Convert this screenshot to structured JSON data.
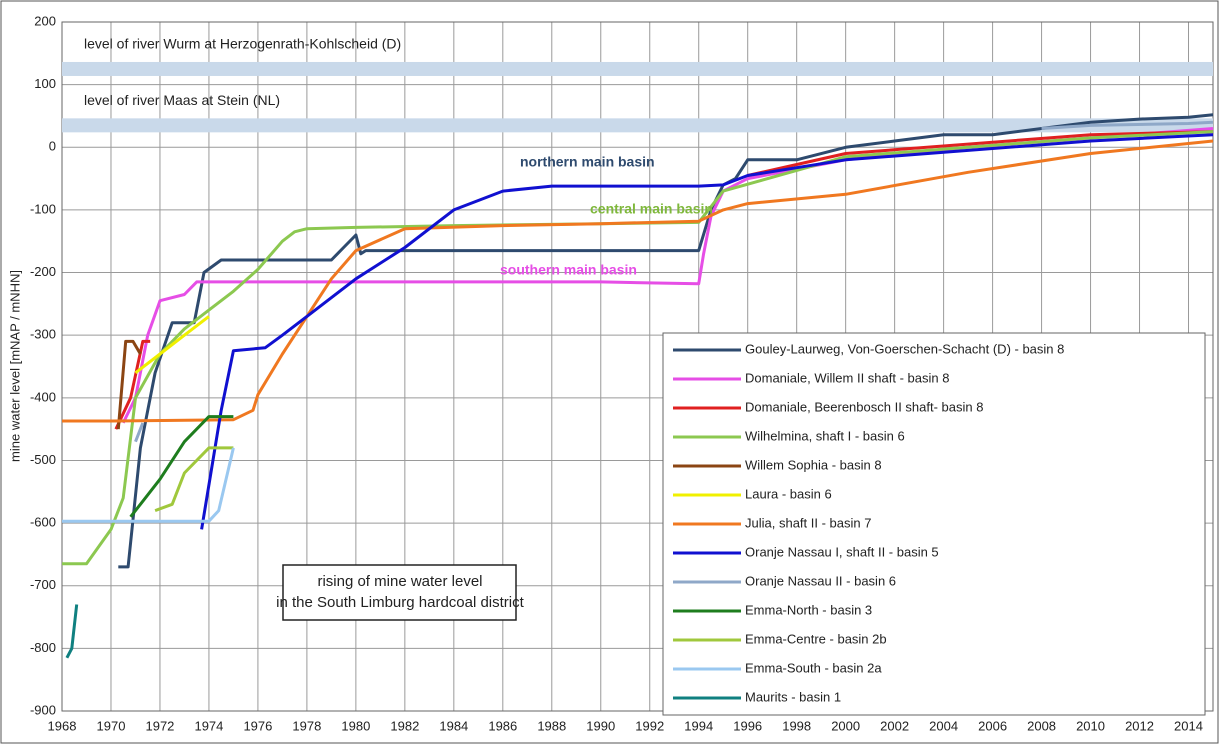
{
  "chart_data": {
    "type": "line",
    "y_label": "mine water level [mNAP / mNHN]",
    "xlim": [
      1968,
      2015
    ],
    "ylim": [
      -900,
      200
    ],
    "xticks": [
      1968,
      1970,
      1972,
      1974,
      1976,
      1978,
      1980,
      1982,
      1984,
      1986,
      1988,
      1990,
      1992,
      1994,
      1996,
      1998,
      2000,
      2002,
      2004,
      2006,
      2008,
      2010,
      2012,
      2014
    ],
    "yticks": [
      -900,
      -800,
      -700,
      -600,
      -500,
      -400,
      -300,
      -200,
      -100,
      0,
      100,
      200
    ],
    "grid": true,
    "legend": "lower right",
    "bands": [
      {
        "label": "level of river Wurm at Herzogenrath-Kohlscheid (D)",
        "value": 125,
        "color": "#c9d9ea"
      },
      {
        "label": "level of river Maas at Stein (NL)",
        "value": 35,
        "color": "#c9d9ea"
      }
    ],
    "annotations": [
      {
        "text": "northern main basin",
        "color": "#2e4a6e"
      },
      {
        "text": "central main basin",
        "color": "#7fb83c"
      },
      {
        "text": "southern main basin",
        "color": "#e64ee6"
      }
    ],
    "note": [
      "rising of mine water level",
      "in the South Limburg hardcoal district"
    ],
    "series": [
      {
        "name": "Gouley-Laurweg, Von-Goerschen-Schacht (D) - basin 8",
        "color": "#2e4a6e",
        "x": [
          1970.3,
          1970.7,
          1971.2,
          1971.8,
          1972.5,
          1973.4,
          1973.8,
          1974.5,
          1979,
          1979.5,
          1980,
          1980.2,
          1980.4,
          1994,
          1994.5,
          1995,
          1995.5,
          1996,
          1997,
          1998,
          2000,
          2002,
          2004,
          2006,
          2008,
          2010,
          2012,
          2014,
          2015
        ],
        "values": [
          -670,
          -670,
          -480,
          -360,
          -280,
          -280,
          -200,
          -180,
          -180,
          -160,
          -140,
          -170,
          -165,
          -165,
          -100,
          -60,
          -50,
          -20,
          -20,
          -20,
          0,
          10,
          20,
          20,
          30,
          40,
          45,
          48,
          52
        ]
      },
      {
        "name": "Domaniale, Willem II shaft - basin 8",
        "color": "#e64ee6",
        "x": [
          1970.5,
          1971,
          1971.5,
          1972,
          1973,
          1973.5,
          1980,
          1990,
          1994,
          1994.2,
          1994.5,
          1995,
          1996,
          2000,
          2005,
          2010,
          2015
        ],
        "values": [
          -440,
          -400,
          -300,
          -245,
          -235,
          -215,
          -215,
          -215,
          -218,
          -170,
          -110,
          -70,
          -50,
          -20,
          0,
          15,
          30
        ]
      },
      {
        "name": "Domaniale, Beerenbosch II shaft- basin 8",
        "color": "#e02020",
        "x": [
          1970.2,
          1970.8,
          1971.3,
          1971.6,
          1990,
          1996,
          2000,
          2005,
          2010,
          2015
        ],
        "values": [
          -450,
          -400,
          -310,
          -310,
          null,
          -45,
          -10,
          5,
          20,
          25
        ]
      },
      {
        "name": "Wilhelmina, shaft I - basin 6",
        "color": "#8cc850",
        "x": [
          1968,
          1969,
          1970,
          1970.5,
          1971,
          1972,
          1973,
          1974,
          1975,
          1976,
          1977,
          1977.5,
          1978,
          1980,
          1984,
          1990,
          1994,
          1995,
          2000,
          2005,
          2010,
          2015
        ],
        "values": [
          -665,
          -665,
          -610,
          -560,
          -400,
          -330,
          -290,
          -260,
          -230,
          -195,
          -150,
          -135,
          -130,
          -128,
          -125,
          -122,
          -120,
          -70,
          -15,
          0,
          15,
          25
        ]
      },
      {
        "name": "Willem Sophia - basin 8",
        "color": "#8b4513",
        "x": [
          1970.3,
          1970.6,
          1970.9,
          1971.2
        ],
        "values": [
          -450,
          -310,
          -310,
          -330
        ]
      },
      {
        "name": "Laura - basin 6",
        "color": "#f0f000",
        "x": [
          1971,
          1972,
          1973,
          1974
        ],
        "values": [
          -360,
          -330,
          -300,
          -270
        ]
      },
      {
        "name": "Julia, shaft II - basin 7",
        "color": "#f07820",
        "x": [
          1968,
          1970,
          1975,
          1975.8,
          1976,
          1977,
          1978,
          1979,
          1980,
          1982,
          1986,
          1990,
          1994,
          1995,
          1996,
          2000,
          2005,
          2010,
          2015
        ],
        "values": [
          -437,
          -437,
          -435,
          -420,
          -395,
          -330,
          -270,
          -210,
          -165,
          -130,
          -125,
          -122,
          -118,
          -100,
          -90,
          -75,
          -40,
          -10,
          10
        ]
      },
      {
        "name": "Oranje Nassau I, shaft II - basin 5",
        "color": "#1010d0",
        "x": [
          1973.7,
          1974.5,
          1975,
          1976.3,
          1977,
          1978,
          1980,
          1982,
          1984,
          1986,
          1988,
          1990,
          1994,
          1995,
          1996,
          2000,
          2005,
          2010,
          2015
        ],
        "values": [
          -610,
          -420,
          -325,
          -320,
          -300,
          -270,
          -210,
          -160,
          -100,
          -70,
          -62,
          -62,
          -62,
          -60,
          -45,
          -20,
          -5,
          10,
          20
        ]
      },
      {
        "name": "Oranje Nassau II - basin 6",
        "color": "#8fa8c8",
        "x": [
          1971,
          1971.3,
          1990,
          2008,
          2010,
          2014,
          2015
        ],
        "values": [
          -470,
          -440,
          null,
          30,
          35,
          38,
          40
        ]
      },
      {
        "name": "Emma-North - basin 3",
        "color": "#1e7d1e",
        "x": [
          1970.8,
          1971.2,
          1972,
          1973,
          1974,
          1974.5,
          1975
        ],
        "values": [
          -590,
          -570,
          -530,
          -470,
          -430,
          -430,
          -430
        ]
      },
      {
        "name": "Emma-Centre - basin 2b",
        "color": "#a0c83c",
        "x": [
          1971.8,
          1972.5,
          1973,
          1974,
          1975
        ],
        "values": [
          -580,
          -570,
          -520,
          -480,
          -480
        ]
      },
      {
        "name": "Emma-South - basin 2a",
        "color": "#9ac8f0",
        "x": [
          1968,
          1974,
          1974.4,
          1975
        ],
        "values": [
          -597,
          -597,
          -580,
          -480
        ]
      },
      {
        "name": "Maurits - basin 1",
        "color": "#108080",
        "x": [
          1968.2,
          1968.4,
          1968.6
        ],
        "values": [
          -815,
          -800,
          -730
        ]
      }
    ]
  }
}
